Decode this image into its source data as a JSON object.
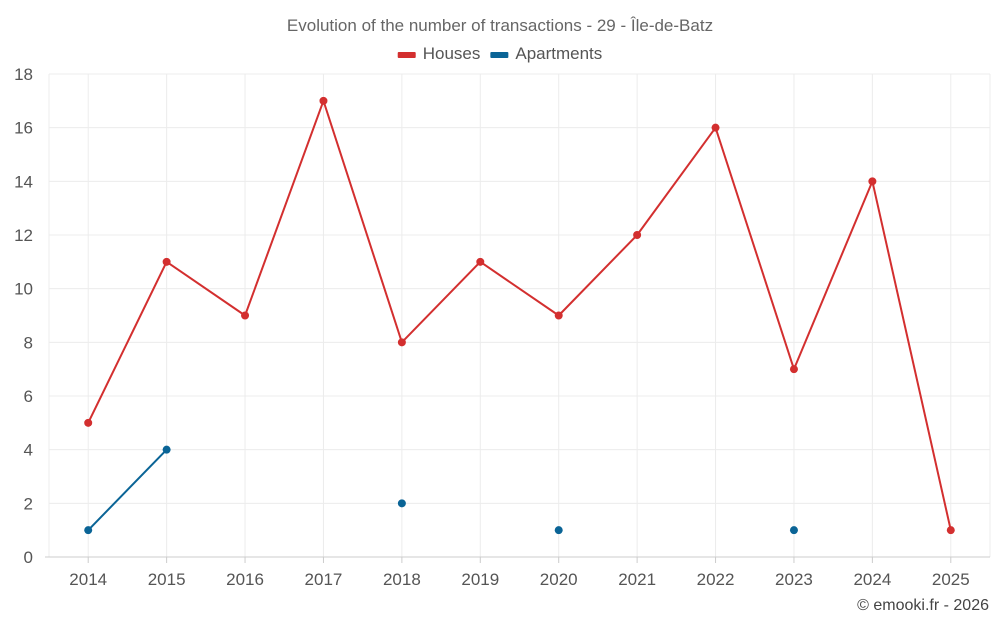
{
  "chart_data": {
    "type": "line",
    "title": "Evolution of the number of transactions - 29 - Île-de-Batz",
    "categories": [
      "2014",
      "2015",
      "2016",
      "2017",
      "2018",
      "2019",
      "2020",
      "2021",
      "2022",
      "2023",
      "2024",
      "2025"
    ],
    "ylim": [
      0,
      18
    ],
    "yticks": [
      0,
      2,
      4,
      6,
      8,
      10,
      12,
      14,
      16,
      18
    ],
    "grid": true,
    "legend_position": "top-center",
    "series": [
      {
        "name": "Houses",
        "color": "#d32f2f",
        "values": [
          5,
          11,
          9,
          17,
          8,
          11,
          9,
          12,
          16,
          7,
          14,
          1
        ]
      },
      {
        "name": "Apartments",
        "color": "#0a6496",
        "values": [
          1,
          4,
          null,
          null,
          2,
          null,
          1,
          null,
          null,
          1,
          null,
          null
        ]
      }
    ],
    "xlabel": "",
    "ylabel": ""
  },
  "credit": "© emooki.fr - 2026"
}
